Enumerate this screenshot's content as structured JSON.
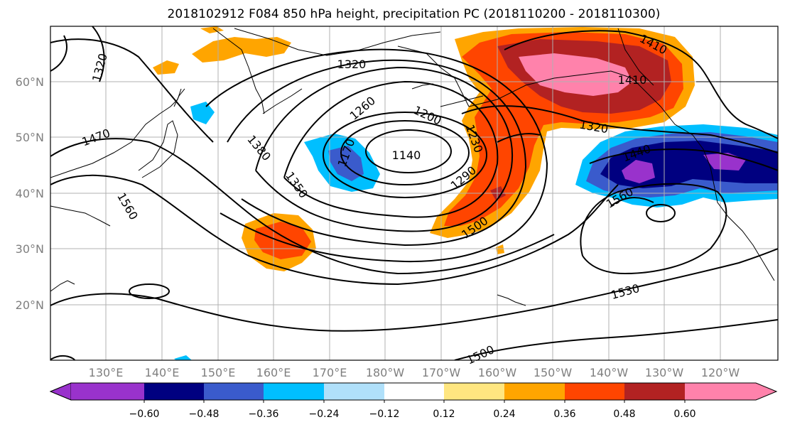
{
  "title": "2018102912 F084 850 hPa height, precipitation PC (2018110200 - 2018110300)",
  "map": {
    "lat_labels": [
      "60°N",
      "50°N",
      "40°N",
      "30°N",
      "20°N"
    ],
    "lon_labels": [
      "130°E",
      "140°E",
      "150°E",
      "160°E",
      "170°E",
      "180°W",
      "170°W",
      "160°W",
      "150°W",
      "140°W",
      "130°W",
      "120°W"
    ],
    "height_contour_labels": [
      "1320",
      "1320",
      "1410",
      "1410",
      "1470",
      "1260",
      "1200",
      "1170",
      "1140",
      "1230",
      "1290",
      "1380",
      "1350",
      "1320",
      "1440",
      "1560",
      "1560",
      "1500",
      "1530",
      "1500"
    ],
    "colors": {
      "grid": "#b0b0b0",
      "tick_label": "#7f7f7f",
      "contour": "#000000"
    }
  },
  "colorbar": {
    "tick_labels": [
      "−0.60",
      "−0.48",
      "−0.36",
      "−0.24",
      "−0.12",
      "0.12",
      "0.24",
      "0.36",
      "0.48",
      "0.60"
    ],
    "bins": [
      {
        "color": "#9932cc"
      },
      {
        "color": "#000080"
      },
      {
        "color": "#3a5bcc"
      },
      {
        "color": "#00bfff"
      },
      {
        "color": "#b0e0fa"
      },
      {
        "color": "#ffffff"
      },
      {
        "color": "#ffe680"
      },
      {
        "color": "#ffa500"
      },
      {
        "color": "#ff4500"
      },
      {
        "color": "#b22222"
      },
      {
        "color": "#ff82ab"
      }
    ]
  }
}
